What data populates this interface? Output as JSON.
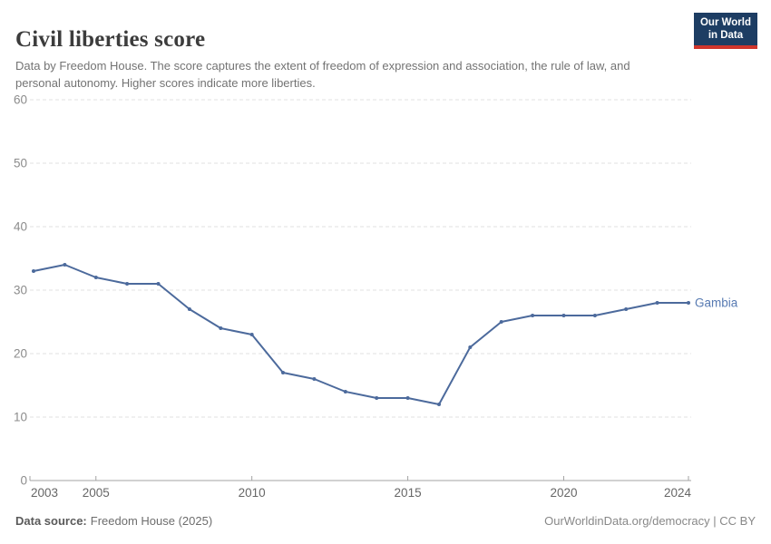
{
  "header": {
    "title": "Civil liberties score",
    "subtitle": "Data by Freedom House. The score captures the extent of freedom of expression and association, the rule of law, and personal autonomy. Higher scores indicate more liberties.",
    "logo": {
      "line1": "Our World",
      "line2": "in Data"
    }
  },
  "footer": {
    "source_label": "Data source:",
    "source_value": "Freedom House (2025)",
    "link": "OurWorldinData.org/democracy | CC BY"
  },
  "colors": {
    "line": "#4c6a9c",
    "entity_label": "#577ab2",
    "grid": "#e0e0e0",
    "axis": "#a3a3a3",
    "y_tick_label": "#8c8c8c",
    "x_tick_label": "#676767",
    "logo_bg": "#1d3d63",
    "logo_red": "#cf352c"
  },
  "chart_data": {
    "type": "line",
    "title": "Civil liberties score",
    "xlabel": "",
    "ylabel": "",
    "x": [
      2003,
      2004,
      2005,
      2006,
      2007,
      2008,
      2009,
      2010,
      2011,
      2012,
      2013,
      2014,
      2015,
      2016,
      2017,
      2018,
      2019,
      2020,
      2021,
      2022,
      2023,
      2024
    ],
    "series": [
      {
        "name": "Gambia",
        "values": [
          33,
          34,
          32,
          31,
          31,
          27,
          24,
          23,
          17,
          16,
          14,
          13,
          13,
          12,
          21,
          25,
          26,
          26,
          26,
          27,
          28,
          28
        ]
      }
    ],
    "xlim": [
      2003,
      2024
    ],
    "ylim": [
      0,
      60
    ],
    "yticks": [
      0,
      10,
      20,
      30,
      40,
      50,
      60
    ],
    "xticks": [
      2003,
      2005,
      2010,
      2015,
      2020,
      2024
    ],
    "grid": "horizontal-dashed",
    "legend_position": "end-of-line-label"
  }
}
